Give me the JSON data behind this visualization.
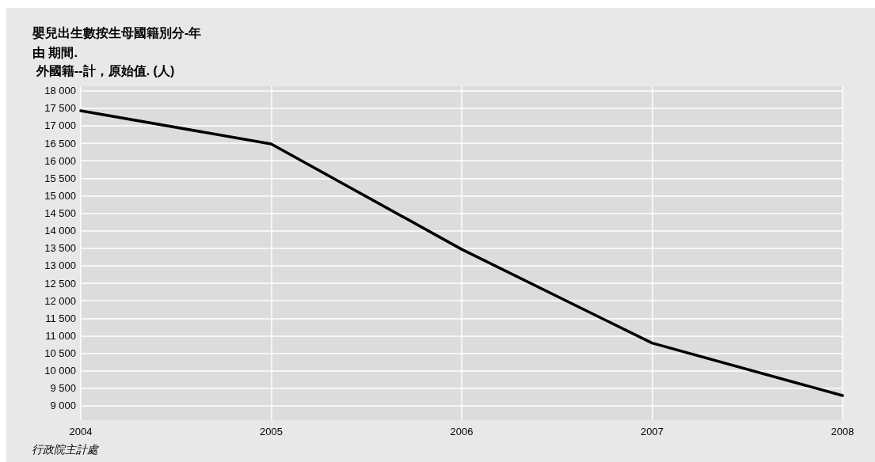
{
  "chart_data": {
    "type": "line",
    "title": "嬰兒出生數按生母國籍別分-年",
    "subtitle": "由 期間.",
    "ylabel": "外國籍--計，原始值. (人)",
    "x": [
      2004,
      2005,
      2006,
      2007,
      2008
    ],
    "series": [
      {
        "color": "#000000",
        "values": [
          17430,
          16480,
          13470,
          10790,
          9290
        ]
      }
    ],
    "xlim": [
      2004,
      2008
    ],
    "xticks": [
      2004,
      2005,
      2006,
      2007,
      2008
    ],
    "ylim": [
      8590,
      18130
    ],
    "yticks": [
      {
        "value": 9000,
        "label": "9 000"
      },
      {
        "value": 9500,
        "label": "9 500"
      },
      {
        "value": 10000,
        "label": "10 000"
      },
      {
        "value": 10500,
        "label": "10 500"
      },
      {
        "value": 11000,
        "label": "11 000"
      },
      {
        "value": 11500,
        "label": "11 500"
      },
      {
        "value": 12000,
        "label": "12 000"
      },
      {
        "value": 12500,
        "label": "12 500"
      },
      {
        "value": 13000,
        "label": "13 000"
      },
      {
        "value": 13500,
        "label": "13 500"
      },
      {
        "value": 14000,
        "label": "14 000"
      },
      {
        "value": 14500,
        "label": "14 500"
      },
      {
        "value": 15000,
        "label": "15 000"
      },
      {
        "value": 15500,
        "label": "15 500"
      },
      {
        "value": 16000,
        "label": "16 000"
      },
      {
        "value": 16500,
        "label": "16 500"
      },
      {
        "value": 17000,
        "label": "17 000"
      },
      {
        "value": 17500,
        "label": "17 500"
      },
      {
        "value": 18000,
        "label": "18 000"
      }
    ],
    "annotations": [
      "行政院主計處"
    ],
    "grid": true,
    "marker": "none",
    "line_style": "solid"
  }
}
